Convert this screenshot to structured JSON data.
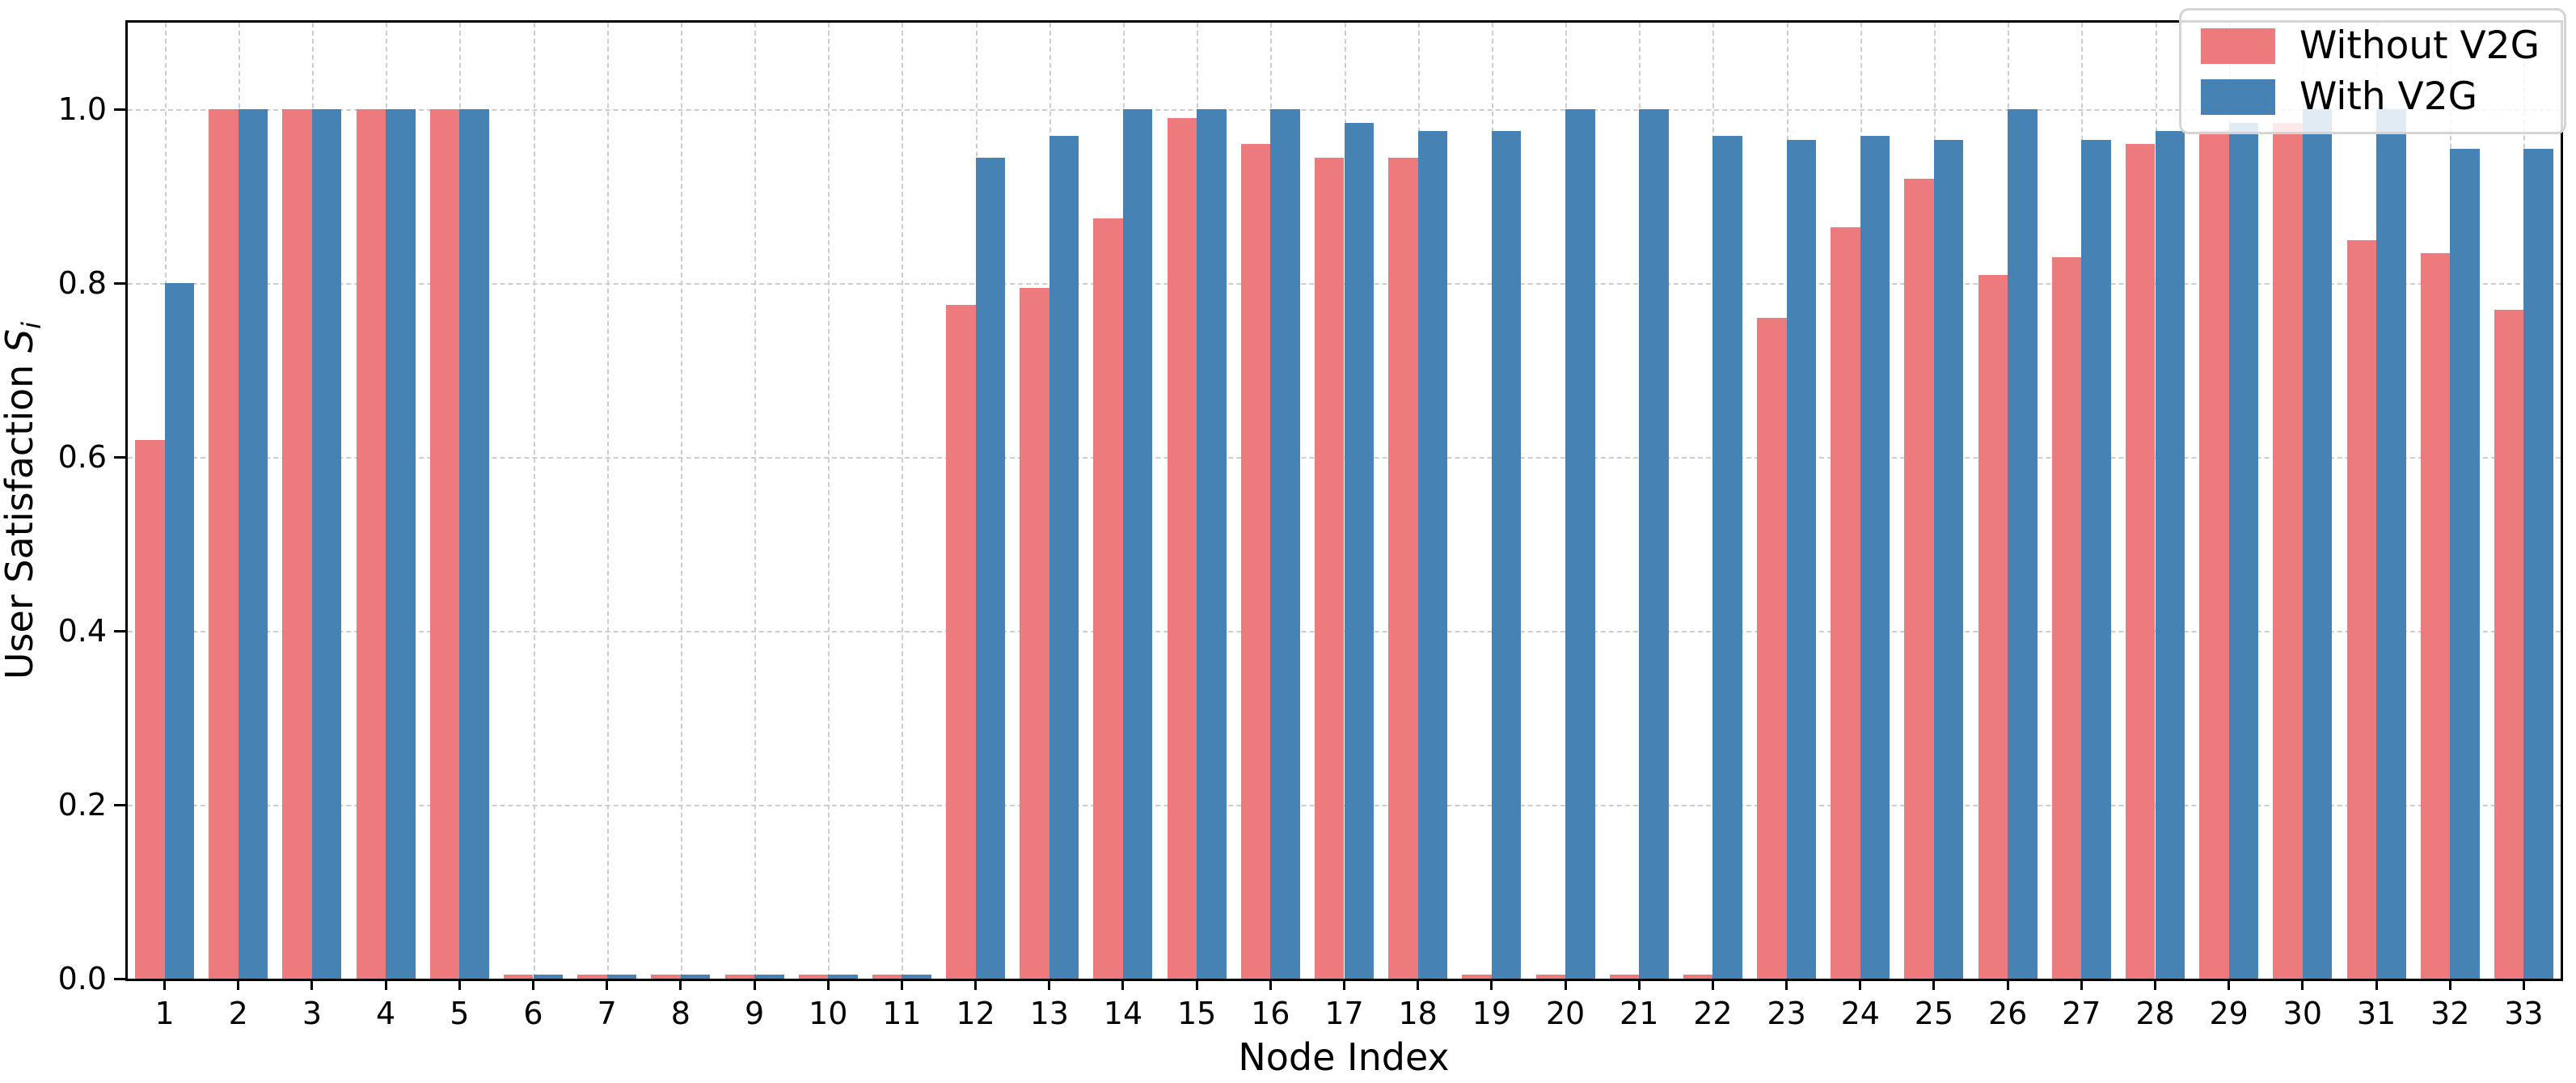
{
  "chart_data": {
    "type": "bar",
    "categories": [
      "1",
      "2",
      "3",
      "4",
      "5",
      "6",
      "7",
      "8",
      "9",
      "10",
      "11",
      "12",
      "13",
      "14",
      "15",
      "16",
      "17",
      "18",
      "19",
      "20",
      "21",
      "22",
      "23",
      "24",
      "25",
      "26",
      "27",
      "28",
      "29",
      "30",
      "31",
      "32",
      "33"
    ],
    "series": [
      {
        "name": "Without V2G",
        "color": "#ED7B7E",
        "values": [
          0.62,
          1.0,
          1.0,
          1.0,
          1.0,
          0.005,
          0.005,
          0.005,
          0.005,
          0.005,
          0.005,
          0.775,
          0.795,
          0.875,
          0.99,
          0.96,
          0.945,
          0.945,
          0.005,
          0.005,
          0.005,
          0.005,
          0.76,
          0.865,
          0.92,
          0.81,
          0.83,
          0.96,
          0.975,
          0.985,
          0.85,
          0.835,
          0.77
        ]
      },
      {
        "name": "With V2G",
        "color": "#4682B4",
        "values": [
          0.8,
          1.0,
          1.0,
          1.0,
          1.0,
          0.005,
          0.005,
          0.005,
          0.005,
          0.005,
          0.005,
          0.945,
          0.97,
          1.0,
          1.0,
          1.0,
          0.985,
          0.975,
          0.975,
          1.0,
          1.0,
          0.97,
          0.965,
          0.97,
          0.965,
          1.0,
          0.965,
          0.975,
          0.985,
          1.0,
          1.0,
          0.955,
          0.955
        ]
      }
    ],
    "title": "",
    "xlabel": "Node Index",
    "ylabel": "User Satisfaction S_i",
    "ylabel_parts": {
      "main": "User Satisfaction ",
      "var": "S",
      "sub": "i"
    },
    "yticks": [
      0.0,
      0.2,
      0.4,
      0.6,
      0.8,
      1.0
    ],
    "ytick_labels": [
      "0.0",
      "0.2",
      "0.4",
      "0.6",
      "0.8",
      "1.0"
    ],
    "ylim": [
      0,
      1.1
    ],
    "grid": "dashed",
    "grid_color": "#cdcdcd",
    "legend_position": "upper right",
    "bar_width_fraction": 0.4
  }
}
